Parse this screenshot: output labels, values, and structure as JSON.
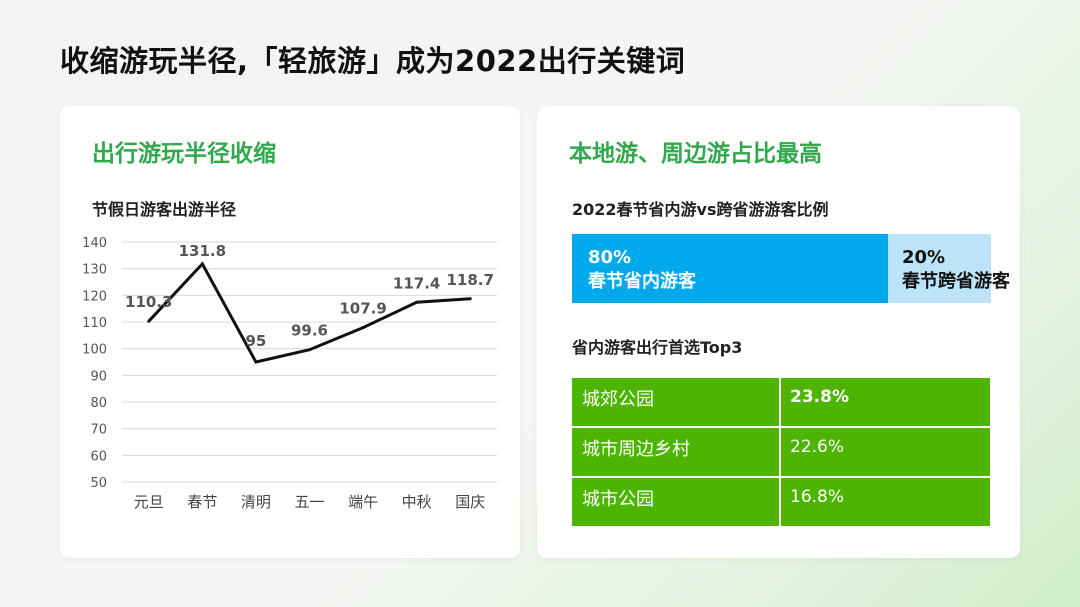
{
  "slide_title": "收缩游玩半径,「轻旅游」成为2022出行关键词",
  "left_card": {
    "title": "出行游玩半径收缩"
  },
  "right_card": {
    "title": "本地游、周边游占比最高",
    "share": {
      "title": "2022春节省内游vs跨省游游客比例",
      "local": {
        "pct": "80%",
        "label": "春节省内游客",
        "value": 80,
        "color": "#00a8ec"
      },
      "cross": {
        "pct": "20%",
        "label": "春节跨省游客",
        "value": 20,
        "color": "#bde3f8"
      }
    },
    "top3": {
      "title": "省内游客出行首选Top3",
      "rows": [
        {
          "name": "城郊公园",
          "value": "23.8%"
        },
        {
          "name": "城市周边乡村",
          "value": "22.6%"
        },
        {
          "name": "城市公园",
          "value": "16.8%"
        }
      ],
      "color": "#4db500"
    }
  },
  "chart_data": {
    "type": "line",
    "title": "节假日游客出游半径",
    "categories": [
      "元旦",
      "春节",
      "清明",
      "五一",
      "端午",
      "中秋",
      "国庆"
    ],
    "series": [
      {
        "values": [
          110.3,
          131.8,
          95,
          99.6,
          107.9,
          117.4,
          118.7
        ]
      }
    ],
    "data_labels": [
      "110.3",
      "131.8",
      "95",
      "99.6",
      "107.9",
      "117.4",
      "118.7"
    ],
    "ylim": [
      50,
      140
    ],
    "yticks": [
      50,
      60,
      70,
      80,
      90,
      100,
      110,
      120,
      130,
      140
    ],
    "grid": true,
    "line_color": "#111111"
  }
}
